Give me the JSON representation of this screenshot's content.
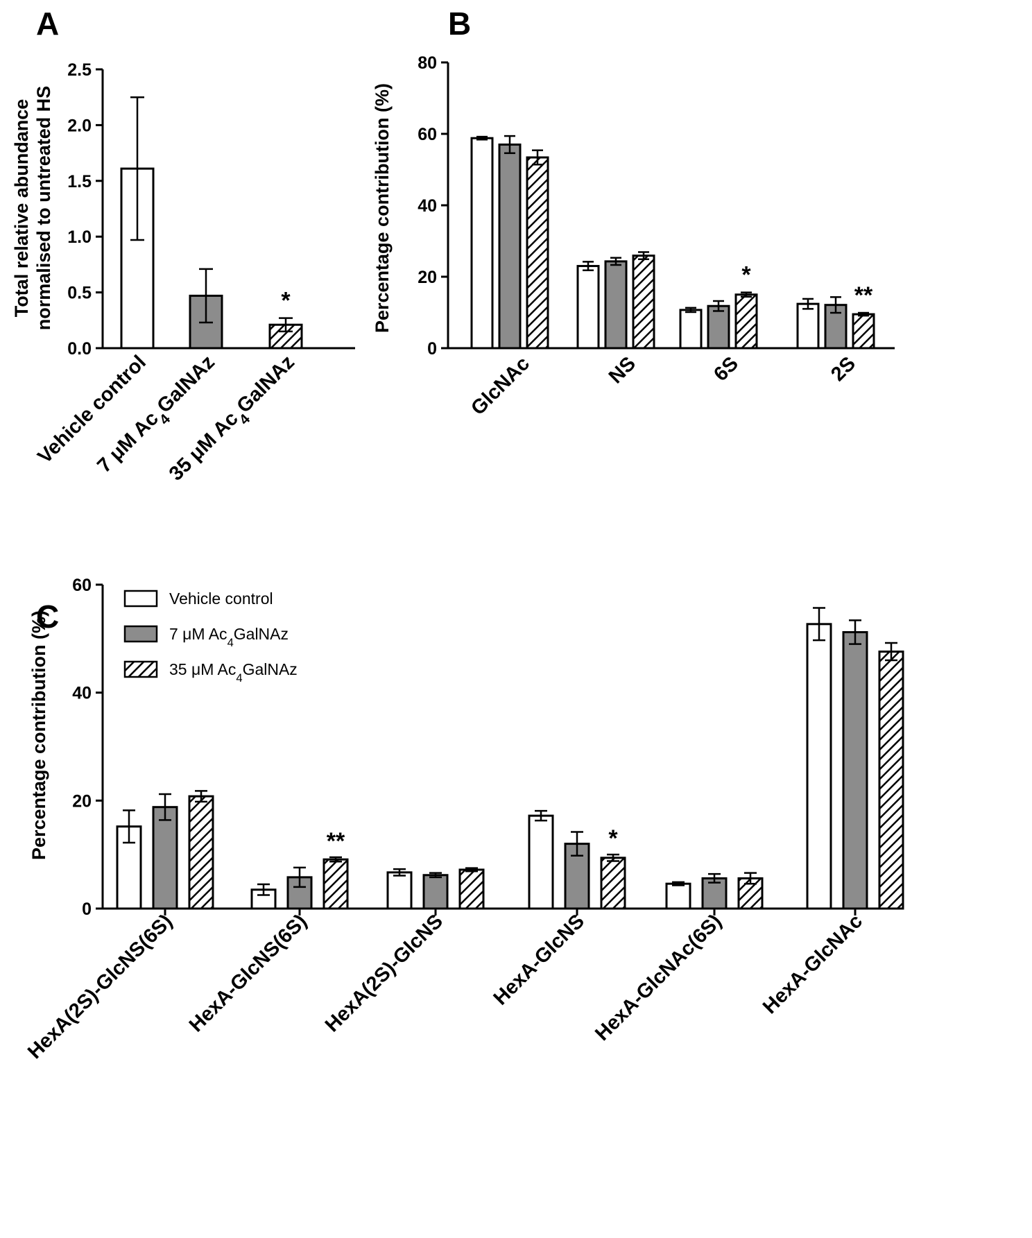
{
  "colors": {
    "series": [
      "#ffffff",
      "#8c8c8c",
      "hatch"
    ],
    "stroke": "#000000"
  },
  "chart_data": [
    {
      "panel": "A",
      "type": "bar",
      "ylabel": [
        "Total relative abundance",
        "normalised to untreated HS"
      ],
      "ylim": [
        0,
        2.5
      ],
      "yticks": [
        "0.0",
        "0.5",
        "1.0",
        "1.5",
        "2.0",
        "2.5"
      ],
      "categories": [
        {
          "pre": "Vehicle control",
          "sub": "",
          "post": ""
        },
        {
          "pre": "7 μM Ac",
          "sub": "4",
          "post": "GalNAz"
        },
        {
          "pre": "35 μM Ac",
          "sub": "4",
          "post": "GalNAz"
        }
      ],
      "values": [
        1.61,
        0.47,
        0.21
      ],
      "errors": [
        0.64,
        0.24,
        0.06
      ],
      "fills": [
        0,
        1,
        2
      ],
      "stars": [
        "",
        "",
        "*"
      ]
    },
    {
      "panel": "B",
      "type": "bar",
      "ylabel": "Percentage contribution (%)",
      "ylim": [
        0,
        80
      ],
      "yticks": [
        "0",
        "20",
        "40",
        "60",
        "80"
      ],
      "categories": [
        "GlcNAc",
        "NS",
        "6S",
        "2S"
      ],
      "series": [
        {
          "name": "Vehicle control",
          "values": [
            58.8,
            23.0,
            10.7,
            12.4
          ],
          "errors": [
            0.4,
            1.2,
            0.6,
            1.4
          ]
        },
        {
          "name": "7 μM Ac4GalNAz",
          "values": [
            57.0,
            24.3,
            11.8,
            12.1
          ],
          "errors": [
            2.4,
            1.0,
            1.4,
            2.2
          ]
        },
        {
          "name": "35 μM Ac4GalNAz",
          "values": [
            53.4,
            25.9,
            15.0,
            9.5
          ],
          "errors": [
            2.0,
            1.0,
            0.6,
            0.4
          ]
        }
      ],
      "stars": [
        [
          "",
          "",
          ""
        ],
        [
          "",
          "",
          ""
        ],
        [
          "",
          "",
          "*"
        ],
        [
          "",
          "",
          "**"
        ]
      ]
    },
    {
      "panel": "C",
      "type": "bar",
      "ylabel": "Percentage contribution (%)",
      "ylim": [
        0,
        60
      ],
      "yticks": [
        "0",
        "20",
        "40",
        "60"
      ],
      "categories": [
        "HexA(2S)-GlcNS(6S)",
        "HexA-GlcNS(6S)",
        "HexA(2S)-GlcNS",
        "HexA-GlcNS",
        "HexA-GlcNAc(6S)",
        "HexA-GlcNAc"
      ],
      "series": [
        {
          "name": "Vehicle control",
          "values": [
            15.2,
            3.5,
            6.7,
            17.2,
            4.6,
            52.7
          ],
          "errors": [
            3.0,
            1.0,
            0.6,
            0.9,
            0.3,
            3.0
          ]
        },
        {
          "name": "7 μM Ac4GalNAz",
          "values": [
            18.8,
            5.8,
            6.2,
            12.0,
            5.6,
            51.2
          ],
          "errors": [
            2.4,
            1.8,
            0.4,
            2.2,
            0.8,
            2.2
          ]
        },
        {
          "name": "35 μM Ac4GalNAz",
          "values": [
            20.8,
            9.1,
            7.2,
            9.4,
            5.6,
            47.6
          ],
          "errors": [
            1.0,
            0.4,
            0.3,
            0.6,
            1.0,
            1.6
          ]
        }
      ],
      "stars": [
        [
          "",
          "",
          ""
        ],
        [
          "",
          "",
          "**"
        ],
        [
          "",
          "",
          ""
        ],
        [
          "",
          "",
          "*"
        ],
        [
          "",
          "",
          ""
        ],
        [
          "",
          "",
          ""
        ]
      ],
      "legend": [
        {
          "pre": "Vehicle control",
          "sub": "",
          "post": ""
        },
        {
          "pre": "7 μM Ac",
          "sub": "4",
          "post": "GalNAz"
        },
        {
          "pre": "35 μM Ac",
          "sub": "4",
          "post": "GalNAz"
        }
      ]
    }
  ]
}
